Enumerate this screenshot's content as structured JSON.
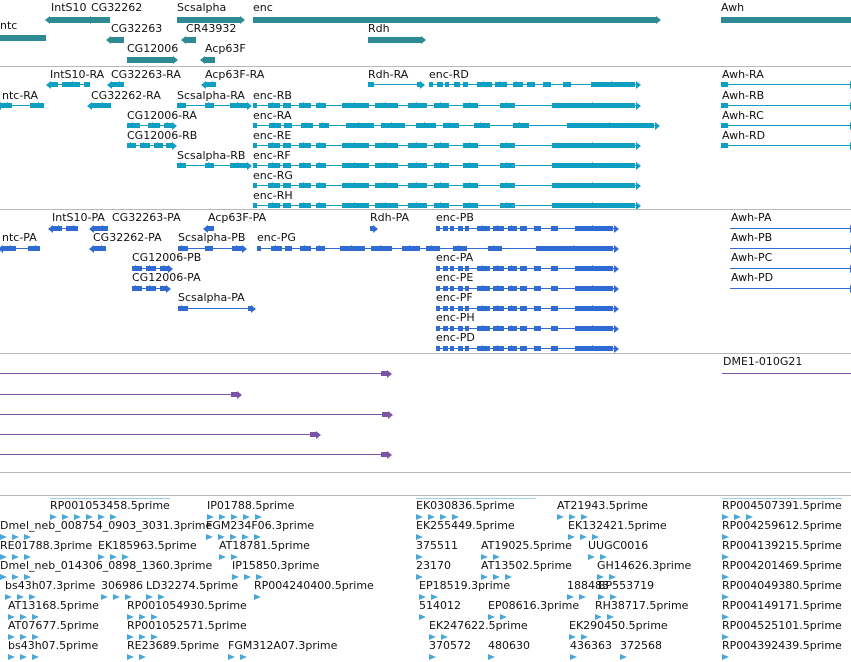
{
  "colors": {
    "genes": "#2e8b94",
    "transcripts": "#0e9fc2",
    "proteins": "#2f6bd3",
    "clones": "#7b54a8",
    "ests": "#4aa8d8",
    "separator": "#b8b8b8"
  },
  "tracks": {
    "genes": [
      {
        "label": "ntc"
      },
      {
        "label": "IntS10"
      },
      {
        "label": "CG32262"
      },
      {
        "label": "CG32263"
      },
      {
        "label": "CG12006"
      },
      {
        "label": "Scsalpha"
      },
      {
        "label": "CR43932"
      },
      {
        "label": "Acp63F"
      },
      {
        "label": "enc"
      },
      {
        "label": "Rdh"
      },
      {
        "label": "Awh"
      }
    ],
    "transcripts": [
      {
        "label": "ntc-RA"
      },
      {
        "label": "IntS10-RA"
      },
      {
        "label": "CG32263-RA"
      },
      {
        "label": "Acp63F-RA"
      },
      {
        "label": "Rdh-RA"
      },
      {
        "label": "enc-RD"
      },
      {
        "label": "Awh-RA"
      },
      {
        "label": "CG32262-RA"
      },
      {
        "label": "Scsalpha-RA"
      },
      {
        "label": "enc-RB"
      },
      {
        "label": "Awh-RB"
      },
      {
        "label": "CG12006-RA"
      },
      {
        "label": "enc-RA"
      },
      {
        "label": "Awh-RC"
      },
      {
        "label": "CG12006-RB"
      },
      {
        "label": "enc-RE"
      },
      {
        "label": "Awh-RD"
      },
      {
        "label": "Scsalpha-RB"
      },
      {
        "label": "enc-RF"
      },
      {
        "label": "enc-RG"
      },
      {
        "label": "enc-RH"
      }
    ],
    "proteins": [
      {
        "label": "IntS10-PA"
      },
      {
        "label": "CG32263-PA"
      },
      {
        "label": "Acp63F-PA"
      },
      {
        "label": "Rdh-PA"
      },
      {
        "label": "enc-PB"
      },
      {
        "label": "Awh-PA"
      },
      {
        "label": "ntc-PA"
      },
      {
        "label": "CG32262-PA"
      },
      {
        "label": "Scsalpha-PB"
      },
      {
        "label": "enc-PG"
      },
      {
        "label": "Awh-PB"
      },
      {
        "label": "CG12006-PB"
      },
      {
        "label": "enc-PA"
      },
      {
        "label": "Awh-PC"
      },
      {
        "label": "CG12006-PA"
      },
      {
        "label": "enc-PE"
      },
      {
        "label": "Awh-PD"
      },
      {
        "label": "Scsalpha-PA"
      },
      {
        "label": "enc-PF"
      },
      {
        "label": "enc-PH"
      },
      {
        "label": "enc-PD"
      }
    ],
    "clones": [
      {
        "label": "DME1-010G21"
      },
      {
        "label": ""
      },
      {
        "label": ""
      },
      {
        "label": ""
      },
      {
        "label": ""
      },
      {
        "label": ""
      }
    ],
    "ests": [
      {
        "label": "RP001053458.5prime"
      },
      {
        "label": "IP01788.5prime"
      },
      {
        "label": "EK030836.5prime"
      },
      {
        "label": "AT21943.5prime"
      },
      {
        "label": "RP004507391.5prime"
      },
      {
        "label": "Dmel_neb_008754_0903_3031.3prime"
      },
      {
        "label": "FGM234F06.3prime"
      },
      {
        "label": "EK255449.5prime"
      },
      {
        "label": "EK132421.5prime"
      },
      {
        "label": "RP004259612.5prime"
      },
      {
        "label": "RE01788.3prime"
      },
      {
        "label": "EK185963.5prime"
      },
      {
        "label": "AT18781.5prime"
      },
      {
        "label": "375511"
      },
      {
        "label": "AT19025.5prime"
      },
      {
        "label": "UUGC0016"
      },
      {
        "label": "RP004139215.5prime"
      },
      {
        "label": "Dmel_neb_014306_0898_1360.3prime"
      },
      {
        "label": "IP15850.3prime"
      },
      {
        "label": "23170"
      },
      {
        "label": "AT13502.5prime"
      },
      {
        "label": "GH14626.3prime"
      },
      {
        "label": "RP004201469.5prime"
      },
      {
        "label": "bs43h07.3prime"
      },
      {
        "label": "306986"
      },
      {
        "label": "LD32274.5prime"
      },
      {
        "label": "RP004240400.5prime"
      },
      {
        "label": "EP18519.3prime"
      },
      {
        "label": "188483"
      },
      {
        "label": "BP553719"
      },
      {
        "label": "RP004049380.5prime"
      },
      {
        "label": "AT13168.5prime"
      },
      {
        "label": "RP001054930.5prime"
      },
      {
        "label": "514012"
      },
      {
        "label": "EP08616.3prime"
      },
      {
        "label": "RH38717.5prime"
      },
      {
        "label": "RP004149171.5prime"
      },
      {
        "label": "AT07677.5prime"
      },
      {
        "label": "RP001052571.5prime"
      },
      {
        "label": "EK247622.5prime"
      },
      {
        "label": "EK290450.5prime"
      },
      {
        "label": "RP004525101.5prime"
      },
      {
        "label": "bs43h07.5prime"
      },
      {
        "label": "RE23689.5prime"
      },
      {
        "label": "FGM312A07.3prime"
      },
      {
        "label": "370572"
      },
      {
        "label": "480630"
      },
      {
        "label": "436363"
      },
      {
        "label": "372568"
      },
      {
        "label": "RP004392439.5prime"
      }
    ]
  }
}
